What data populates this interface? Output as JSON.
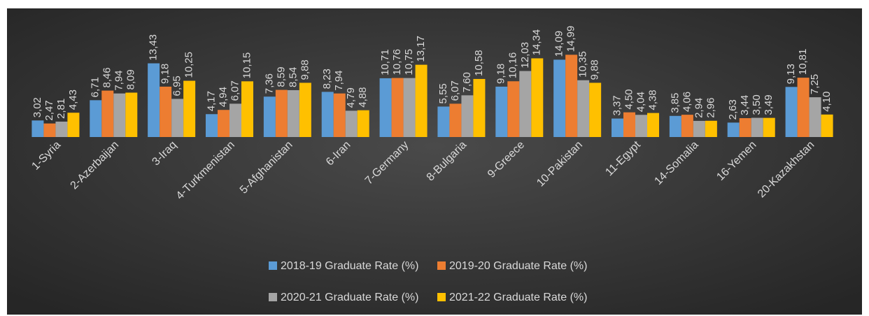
{
  "chart_data": {
    "type": "bar",
    "categories": [
      "1-Syria",
      "2-Azerbaijan",
      "3-Iraq",
      "4-Turkmenistan",
      "5-Afghanistan",
      "6-Iran",
      "7-Germany",
      "8-Bulgaria",
      "9-Greece",
      "10-Pakistan",
      "11-Egypt",
      "14-Somalia",
      "16-Yemen",
      "20-Kazakhstan"
    ],
    "series": [
      {
        "name": "2018-19 Graduate Rate (%)",
        "color": "#5b9bd5",
        "values": [
          3.02,
          6.71,
          13.43,
          4.17,
          7.36,
          8.23,
          10.71,
          5.55,
          9.18,
          14.09,
          3.37,
          3.85,
          2.63,
          9.13
        ],
        "value_labels": [
          "3,02",
          "6,71",
          "13,43",
          "4,17",
          "7,36",
          "8,23",
          "10,71",
          "5,55",
          "9,18",
          "14,09",
          "3,37",
          "3,85",
          "2,63",
          "9,13"
        ]
      },
      {
        "name": "2019-20 Graduate Rate (%)",
        "color": "#ed7d31",
        "values": [
          2.47,
          8.46,
          9.18,
          4.94,
          8.59,
          7.94,
          10.76,
          6.07,
          10.16,
          14.99,
          4.5,
          4.06,
          3.44,
          10.81
        ],
        "value_labels": [
          "2,47",
          "8,46",
          "9,18",
          "4,94",
          "8,59",
          "7,94",
          "10,76",
          "6,07",
          "10,16",
          "14,99",
          "4,50",
          "4,06",
          "3,44",
          "10,81"
        ]
      },
      {
        "name": "2020-21 Graduate Rate (%)",
        "color": "#a5a5a5",
        "values": [
          2.81,
          7.94,
          6.95,
          6.07,
          8.54,
          4.79,
          10.75,
          7.6,
          12.03,
          10.35,
          4.04,
          2.94,
          3.5,
          7.25
        ],
        "value_labels": [
          "2,81",
          "7,94",
          "6,95",
          "6,07",
          "8,54",
          "4,79",
          "10,75",
          "7,60",
          "12,03",
          "10,35",
          "4,04",
          "2,94",
          "3,50",
          "7,25"
        ]
      },
      {
        "name": "2021-22 Graduate Rate (%)",
        "color": "#ffc000",
        "values": [
          4.43,
          8.09,
          10.25,
          10.15,
          9.88,
          4.88,
          13.17,
          10.58,
          14.34,
          9.88,
          4.38,
          2.96,
          3.49,
          4.1
        ],
        "value_labels": [
          "4,43",
          "8,09",
          "10,25",
          "10,15",
          "9,88",
          "4,88",
          "13,17",
          "10,58",
          "14,34",
          "9,88",
          "4,38",
          "2,96",
          "3,49",
          "4,10"
        ]
      }
    ]
  }
}
